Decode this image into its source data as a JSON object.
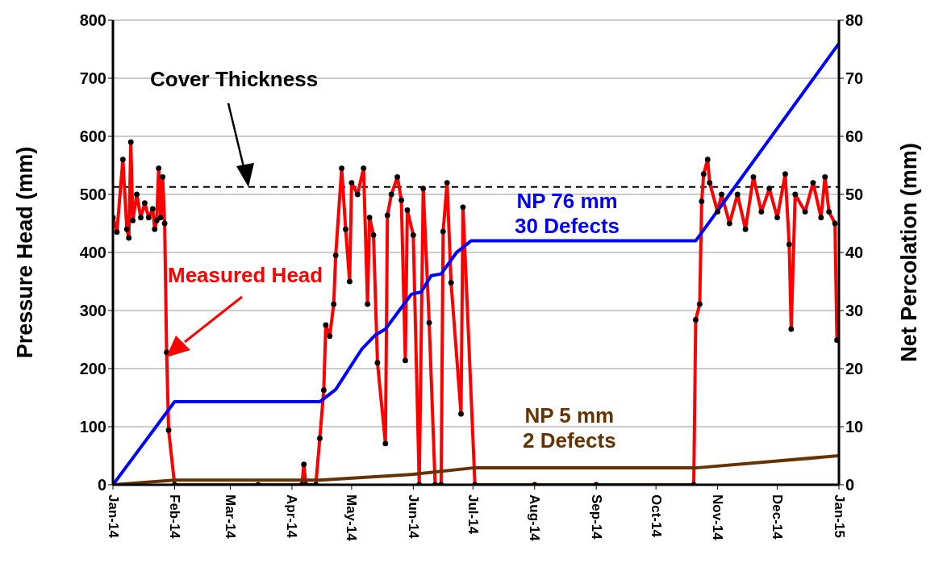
{
  "chart_data": {
    "type": "line",
    "ylabel": "Pressure Head (mm)",
    "y2label": "Net Percolation (mm)",
    "xlim": [
      "2014-01-01",
      "2015-01-01"
    ],
    "xticks": [
      {
        "value": "2014-01-01",
        "label": "Jan-14"
      },
      {
        "value": "2014-02-01",
        "label": "Feb-14"
      },
      {
        "value": "2014-03-01",
        "label": "Mar-14"
      },
      {
        "value": "2014-04-01",
        "label": "Apr-14"
      },
      {
        "value": "2014-05-01",
        "label": "May-14"
      },
      {
        "value": "2014-06-01",
        "label": "Jun-14"
      },
      {
        "value": "2014-07-01",
        "label": "Jul-14"
      },
      {
        "value": "2014-08-01",
        "label": "Aug-14"
      },
      {
        "value": "2014-09-01",
        "label": "Sep-14"
      },
      {
        "value": "2014-10-01",
        "label": "Oct-14"
      },
      {
        "value": "2014-11-01",
        "label": "Nov-14"
      },
      {
        "value": "2014-12-01",
        "label": "Dec-14"
      },
      {
        "value": "2015-01-01",
        "label": "Jan-15"
      }
    ],
    "ylim": [
      0,
      800
    ],
    "yticks": [
      0,
      100,
      200,
      300,
      400,
      500,
      600,
      700,
      800
    ],
    "y2lim": [
      0,
      80
    ],
    "y2ticks": [
      0,
      10,
      20,
      30,
      40,
      50,
      60,
      70,
      80
    ],
    "grid": "y",
    "legend": false,
    "line_style": "solid",
    "ref_lines": [
      {
        "axis": "y",
        "value": 513,
        "color": "#000000",
        "line_style": "dashed"
      }
    ],
    "annotations": [
      "Cover Thickness"
    ],
    "series": [
      {
        "name": "Measured Head",
        "color": "#ff0000",
        "marker": "circle",
        "x": [
          "2014-01-01",
          "2014-01-03",
          "2014-01-06",
          "2014-01-08",
          "2014-01-09",
          "2014-01-10",
          "2014-01-11",
          "2014-01-13",
          "2014-01-15",
          "2014-01-17",
          "2014-01-19",
          "2014-01-21",
          "2014-01-22",
          "2014-01-23",
          "2014-01-24",
          "2014-01-25",
          "2014-01-26",
          "2014-01-27",
          "2014-01-28",
          "2014-01-29",
          "2014-02-01",
          "2014-03-15",
          "2014-04-06",
          "2014-04-07",
          "2014-04-08",
          "2014-04-13",
          "2014-04-15",
          "2014-04-17",
          "2014-04-18",
          "2014-04-20",
          "2014-04-22",
          "2014-04-23",
          "2014-04-26",
          "2014-04-28",
          "2014-04-30",
          "2014-05-01",
          "2014-05-04",
          "2014-05-07",
          "2014-05-09",
          "2014-05-10",
          "2014-05-12",
          "2014-05-14",
          "2014-05-18",
          "2014-05-19",
          "2014-05-21",
          "2014-05-24",
          "2014-05-26",
          "2014-05-28",
          "2014-05-29",
          "2014-06-01",
          "2014-06-04",
          "2014-06-06",
          "2014-06-09",
          "2014-06-12",
          "2014-06-15",
          "2014-06-16",
          "2014-06-18",
          "2014-06-20",
          "2014-06-25",
          "2014-06-26",
          "2014-07-02",
          "2014-08-01",
          "2014-09-01",
          "2014-10-20",
          "2014-10-21",
          "2014-10-23",
          "2014-10-24",
          "2014-10-25",
          "2014-10-27",
          "2014-10-28",
          "2014-11-01",
          "2014-11-03",
          "2014-11-07",
          "2014-11-11",
          "2014-11-15",
          "2014-11-19",
          "2014-11-23",
          "2014-11-27",
          "2014-12-01",
          "2014-12-05",
          "2014-12-07",
          "2014-12-08",
          "2014-12-10",
          "2014-12-15",
          "2014-12-19",
          "2014-12-23",
          "2014-12-25",
          "2014-12-27",
          "2014-12-30",
          "2014-12-31"
        ],
        "values": [
          460,
          435,
          560,
          440,
          425,
          590,
          455,
          500,
          460,
          485,
          460,
          475,
          440,
          455,
          545,
          460,
          530,
          450,
          228,
          94,
          0,
          0,
          0,
          35,
          0,
          0,
          80,
          163,
          275,
          256,
          311,
          395,
          545,
          440,
          350,
          520,
          500,
          545,
          311,
          460,
          430,
          210,
          71,
          464,
          500,
          530,
          490,
          214,
          473,
          430,
          0,
          510,
          279,
          0,
          0,
          436,
          520,
          348,
          122,
          478,
          0,
          0,
          0,
          0,
          284,
          311,
          488,
          535,
          560,
          520,
          470,
          500,
          450,
          500,
          440,
          530,
          470,
          510,
          460,
          535,
          414,
          268,
          500,
          470,
          520,
          460,
          530,
          470,
          450,
          249
        ]
      },
      {
        "name": "NP 76 mm\n30 Defects",
        "color": "#0000ff",
        "axis": "y2",
        "x": [
          "2014-01-01",
          "2014-02-01",
          "2014-04-15",
          "2014-04-23",
          "2014-05-06",
          "2014-05-13",
          "2014-05-18",
          "2014-05-31",
          "2014-06-05",
          "2014-06-10",
          "2014-06-15",
          "2014-06-23",
          "2014-06-25",
          "2014-06-30",
          "2014-10-21",
          "2015-01-01"
        ],
        "values": [
          0,
          14.3,
          14.3,
          16.4,
          23.3,
          25.8,
          26.8,
          32.8,
          33.2,
          36,
          36.3,
          40.1,
          40.6,
          42,
          42,
          76
        ]
      },
      {
        "name": "NP 5 mm\n2 Defects",
        "color": "#663300",
        "axis": "y2",
        "x": [
          "2014-01-01",
          "2014-02-01",
          "2014-04-15",
          "2014-06-01",
          "2014-07-01",
          "2014-10-21",
          "2015-01-01"
        ],
        "values": [
          0,
          0.8,
          0.8,
          1.8,
          2.9,
          2.9,
          5
        ]
      }
    ]
  }
}
